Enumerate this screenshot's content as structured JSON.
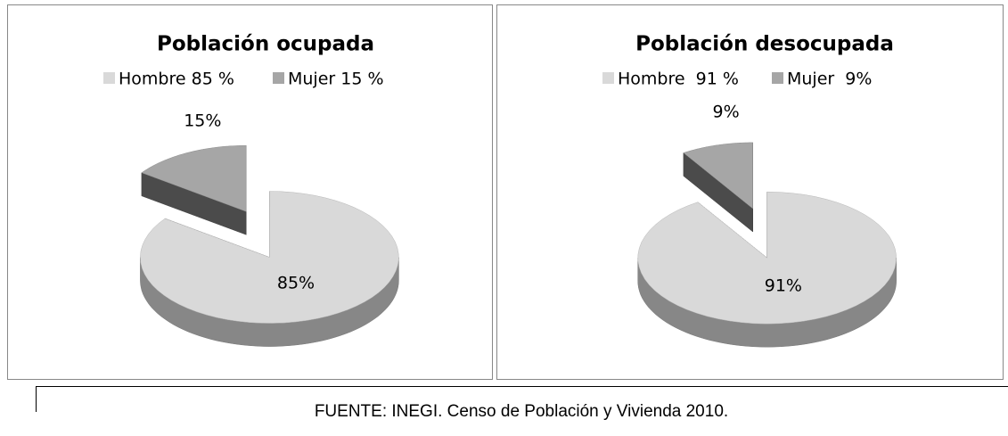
{
  "chart_data": [
    {
      "type": "pie",
      "title": "Población ocupada",
      "categories": [
        "Hombre 85 %",
        "Mujer 15 %"
      ],
      "values": [
        85,
        15
      ],
      "value_labels": [
        "85%",
        "15%"
      ],
      "colors": [
        "#d9d9d9",
        "#a6a6a6"
      ]
    },
    {
      "type": "pie",
      "title": "Población desocupada",
      "categories": [
        "Hombre  91 %",
        "Mujer  9%"
      ],
      "values": [
        91,
        9
      ],
      "value_labels": [
        "91%",
        "9%"
      ],
      "colors": [
        "#d9d9d9",
        "#a6a6a6"
      ]
    }
  ],
  "source": "FUENTE: INEGI. Censo de Población y Vivienda 2010."
}
